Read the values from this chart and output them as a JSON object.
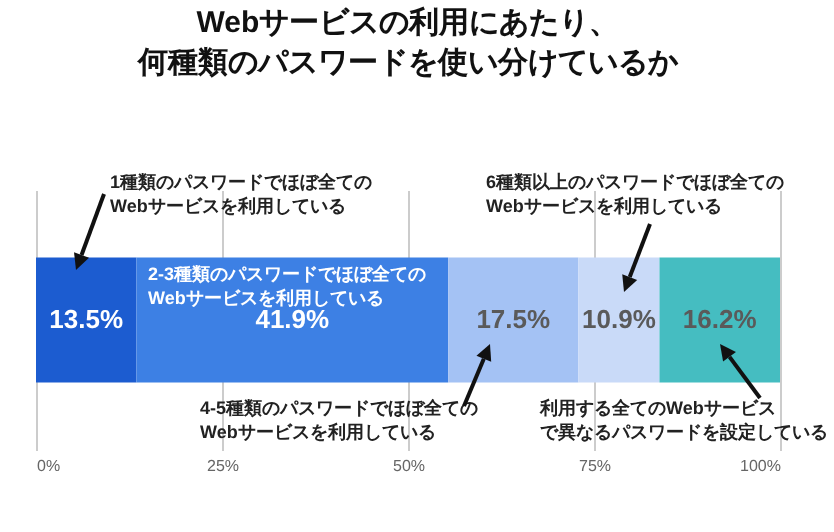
{
  "chart_data": {
    "type": "bar",
    "orientation": "horizontal",
    "stacked": true,
    "title": "Webサービスの利用にあたり、何種類のパスワードを使い分けているか",
    "categories": [
      null
    ],
    "series": [
      {
        "name": "1種類のパスワードでほぼ全ての\nWebサービスを利用している",
        "color": "#1c5cd0",
        "values": [
          13.5
        ],
        "value_labels": [
          "13.5%"
        ]
      },
      {
        "name": "2-3種類のパスワードでほぼ全ての\nWebサービスを利用している",
        "color": "#3d80e4",
        "values": [
          41.9
        ],
        "value_labels": [
          "41.9%"
        ]
      },
      {
        "name": "4-5種類のパスワードでほぼ全ての\nWebサービスを利用している",
        "color": "#a4c2f4",
        "values": [
          17.5
        ],
        "value_labels": [
          "17.5%"
        ]
      },
      {
        "name": "6種類以上のパスワードでほぼ全ての\nWebサービスを利用している",
        "color": "#c9daf8",
        "values": [
          10.9
        ],
        "value_labels": [
          "10.9%"
        ]
      },
      {
        "name": "利用する全てのWebサービスで異なるパスワードを設定している",
        "color": "#45bdc1",
        "values": [
          16.2
        ],
        "value_labels": [
          "16.2%"
        ]
      }
    ],
    "xlim": [
      0,
      100
    ],
    "xticks": [
      {
        "value": 0,
        "label": "0%"
      },
      {
        "value": 25,
        "label": "25%"
      },
      {
        "value": 50,
        "label": "50%"
      },
      {
        "value": 75,
        "label": "75%"
      },
      {
        "value": 100,
        "label": "100%"
      }
    ],
    "grid": "x"
  }
}
